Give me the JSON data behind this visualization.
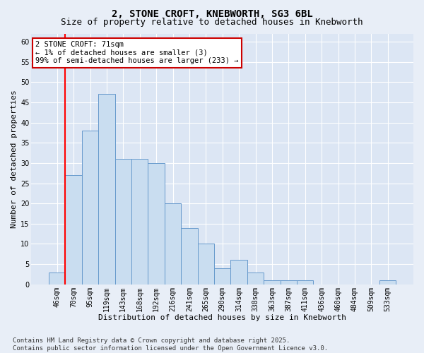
{
  "title1": "2, STONE CROFT, KNEBWORTH, SG3 6BL",
  "title2": "Size of property relative to detached houses in Knebworth",
  "xlabel": "Distribution of detached houses by size in Knebworth",
  "ylabel": "Number of detached properties",
  "categories": [
    "46sqm",
    "70sqm",
    "95sqm",
    "119sqm",
    "143sqm",
    "168sqm",
    "192sqm",
    "216sqm",
    "241sqm",
    "265sqm",
    "290sqm",
    "314sqm",
    "338sqm",
    "363sqm",
    "387sqm",
    "411sqm",
    "436sqm",
    "460sqm",
    "484sqm",
    "509sqm",
    "533sqm"
  ],
  "values": [
    3,
    27,
    38,
    47,
    31,
    31,
    30,
    20,
    14,
    10,
    4,
    6,
    3,
    1,
    1,
    1,
    0,
    0,
    0,
    0,
    1
  ],
  "bar_color": "#c9ddf0",
  "bar_edge_color": "#6699cc",
  "red_line_index": 1,
  "ylim": [
    0,
    62
  ],
  "yticks": [
    0,
    5,
    10,
    15,
    20,
    25,
    30,
    35,
    40,
    45,
    50,
    55,
    60
  ],
  "annotation_line1": "2 STONE CROFT: 71sqm",
  "annotation_line2": "← 1% of detached houses are smaller (3)",
  "annotation_line3": "99% of semi-detached houses are larger (233) →",
  "annotation_box_color": "#ffffff",
  "annotation_box_edge": "#cc0000",
  "background_color": "#e8eef7",
  "plot_bg_color": "#dce6f4",
  "footer": "Contains HM Land Registry data © Crown copyright and database right 2025.\nContains public sector information licensed under the Open Government Licence v3.0.",
  "title1_fontsize": 10,
  "title2_fontsize": 9,
  "xlabel_fontsize": 8,
  "ylabel_fontsize": 8,
  "tick_fontsize": 7,
  "annotation_fontsize": 7.5,
  "footer_fontsize": 6.5
}
